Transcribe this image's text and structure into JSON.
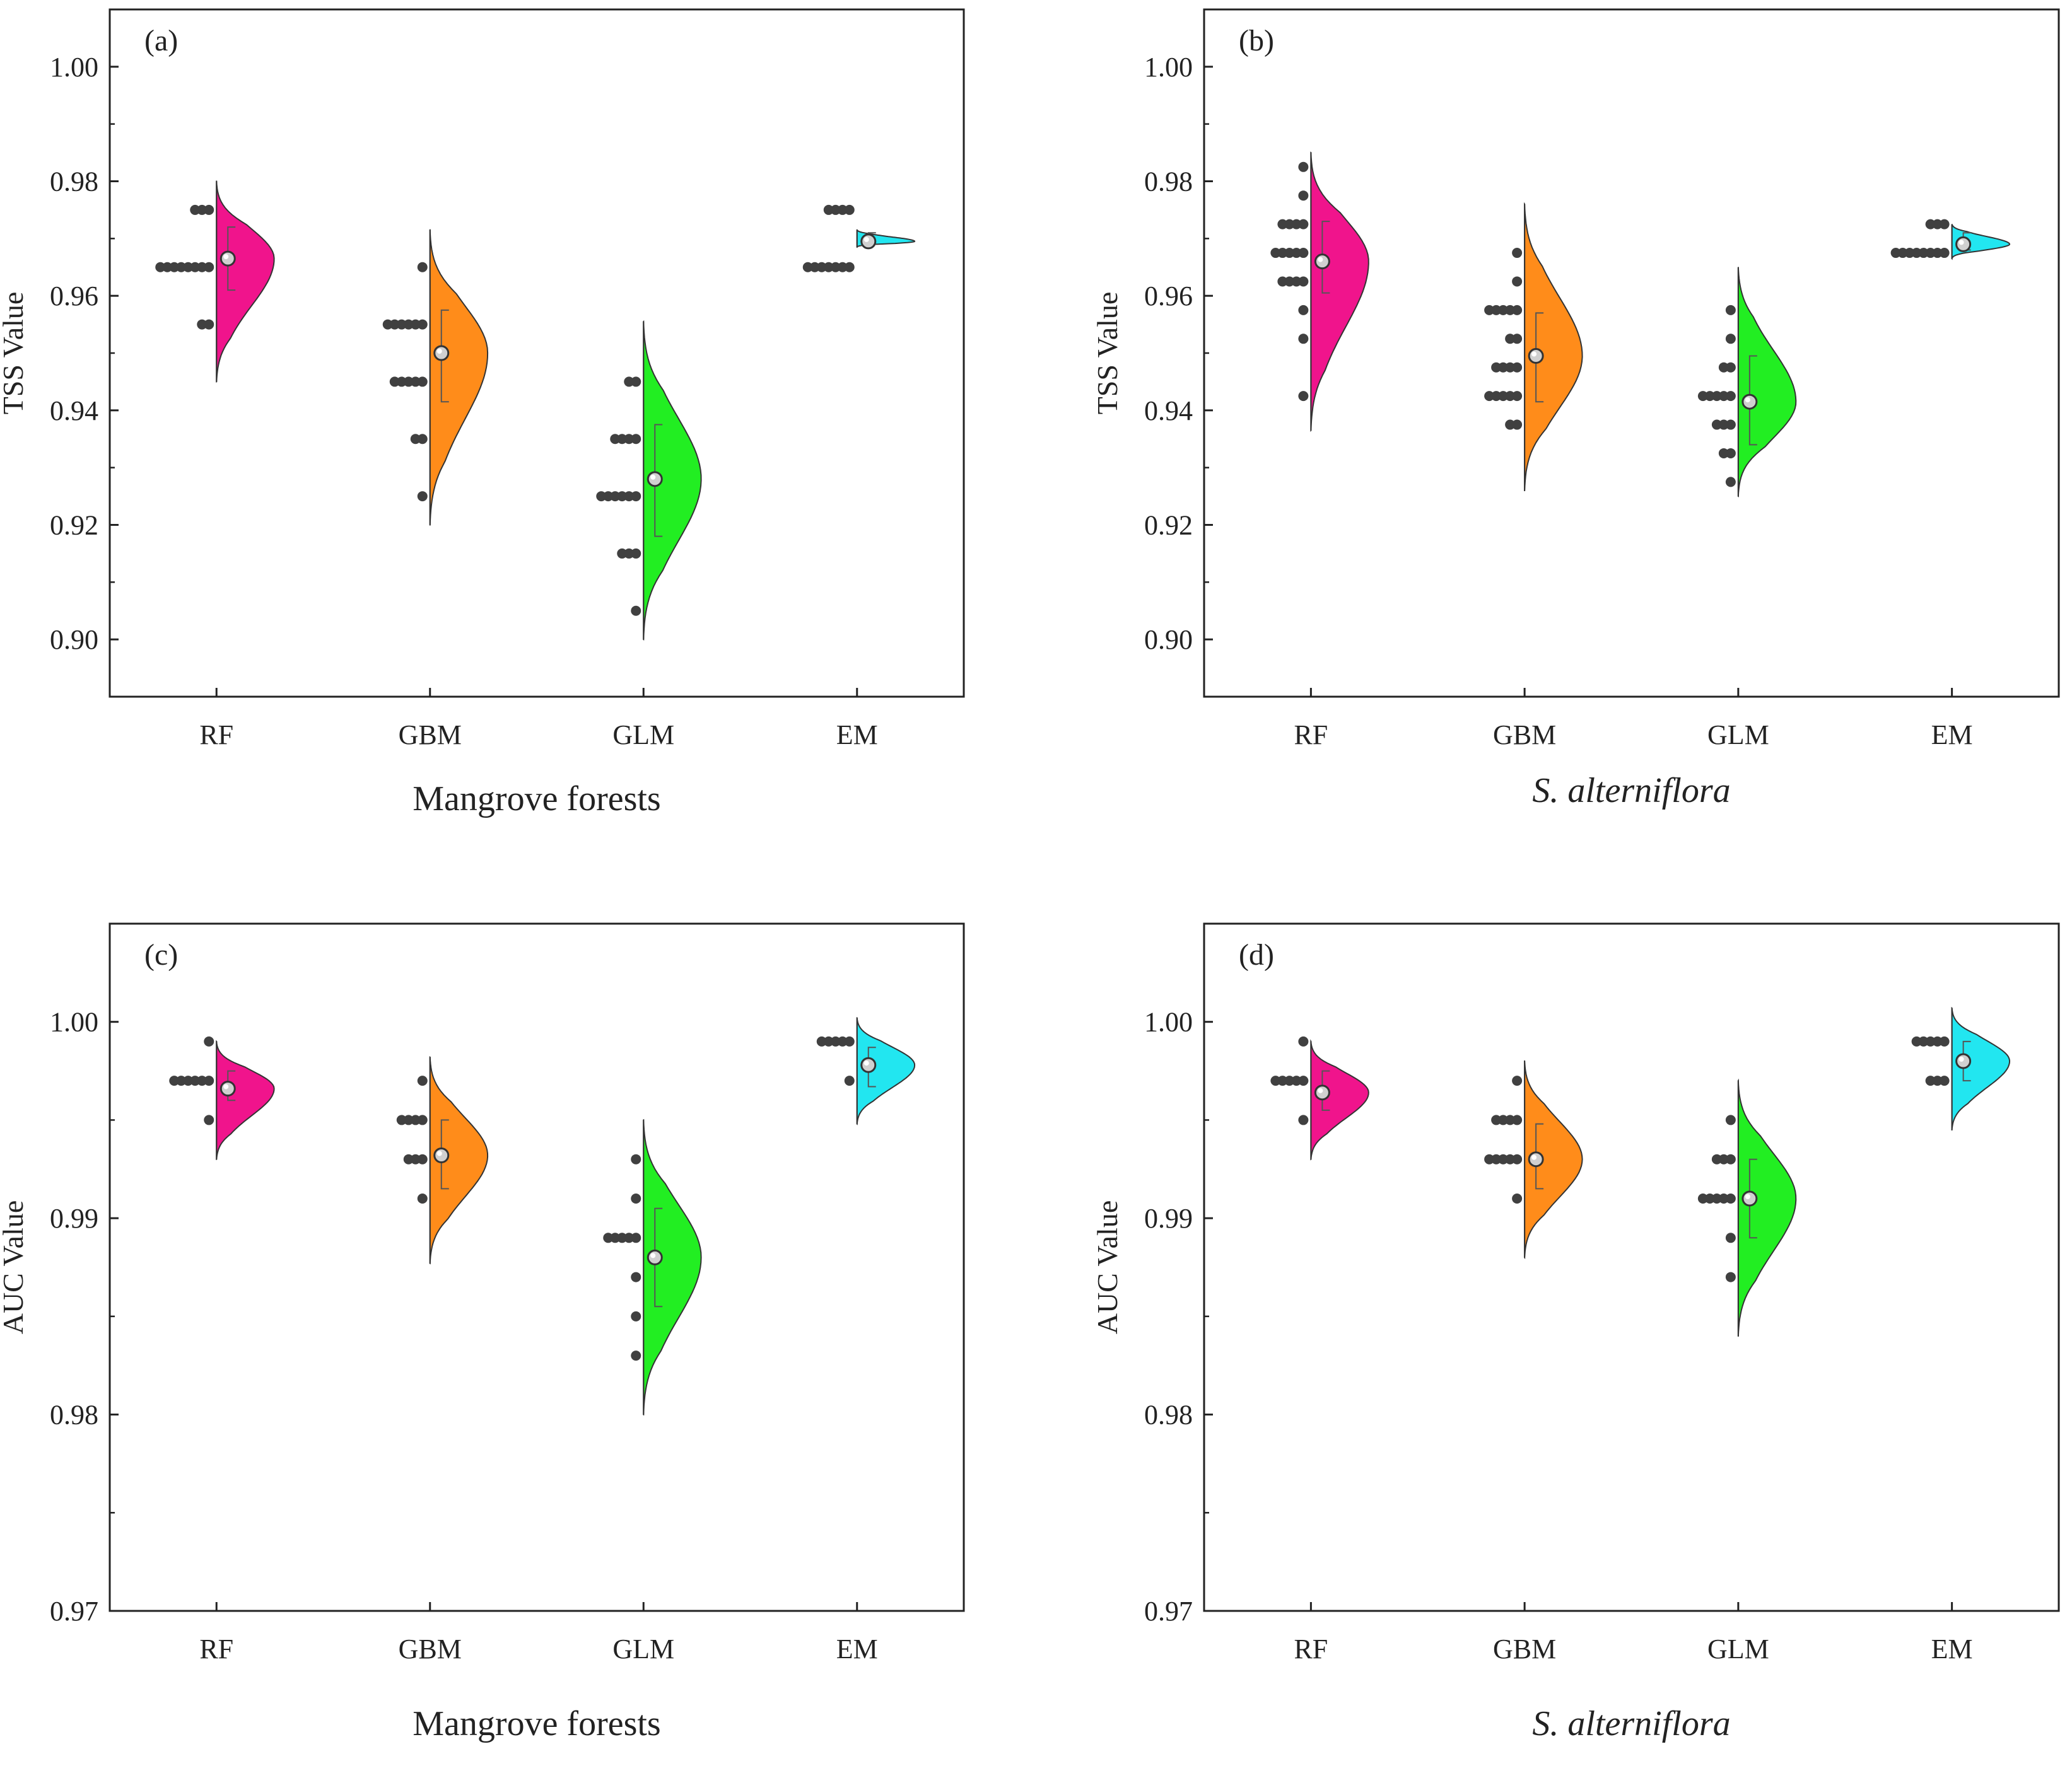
{
  "figure": {
    "colors": {
      "RF": "#f0148c",
      "GBM": "#ff8c1a",
      "GLM": "#22ee22",
      "EM": "#22e6f0",
      "dots": "#404040",
      "axis": "#222222"
    }
  },
  "chart_data": [
    {
      "id": "a",
      "type": "half-violin",
      "panel_label": "(a)",
      "ylabel": "TSS Value",
      "caption": "Mangrove forests",
      "caption_italic": false,
      "categories": [
        "RF",
        "GBM",
        "GLM",
        "EM"
      ],
      "ylim": [
        0.89,
        1.01
      ],
      "yticks": [
        0.9,
        0.92,
        0.94,
        0.96,
        0.98,
        1.0
      ],
      "ytick_labels": [
        "0.90",
        "0.92",
        "0.94",
        "0.96",
        "0.98",
        "1.00"
      ],
      "series": [
        {
          "name": "RF",
          "min": 0.945,
          "max": 0.98,
          "mean": 0.9665,
          "q1": 0.961,
          "q3": 0.972,
          "dots": [
            {
              "v": 0.975,
              "n": 3
            },
            {
              "v": 0.965,
              "n": 8
            },
            {
              "v": 0.955,
              "n": 2
            }
          ]
        },
        {
          "name": "GBM",
          "min": 0.92,
          "max": 0.9715,
          "mean": 0.95,
          "q1": 0.9415,
          "q3": 0.9575,
          "dots": [
            {
              "v": 0.965,
              "n": 1
            },
            {
              "v": 0.955,
              "n": 6
            },
            {
              "v": 0.945,
              "n": 5
            },
            {
              "v": 0.935,
              "n": 2
            },
            {
              "v": 0.925,
              "n": 1
            }
          ]
        },
        {
          "name": "GLM",
          "min": 0.9,
          "max": 0.9555,
          "mean": 0.928,
          "q1": 0.918,
          "q3": 0.9375,
          "dots": [
            {
              "v": 0.945,
              "n": 2
            },
            {
              "v": 0.935,
              "n": 4
            },
            {
              "v": 0.925,
              "n": 6
            },
            {
              "v": 0.915,
              "n": 3
            },
            {
              "v": 0.905,
              "n": 1
            }
          ]
        },
        {
          "name": "EM",
          "min": 0.9685,
          "max": 0.9715,
          "mean": 0.9695,
          "q1": 0.969,
          "q3": 0.971,
          "dots": [
            {
              "v": 0.975,
              "n": 4
            },
            {
              "v": 0.965,
              "n": 7
            }
          ]
        }
      ]
    },
    {
      "id": "b",
      "type": "half-violin",
      "panel_label": "(b)",
      "ylabel": "TSS Value",
      "caption": "S. alterniflora",
      "caption_italic": true,
      "categories": [
        "RF",
        "GBM",
        "GLM",
        "EM"
      ],
      "ylim": [
        0.89,
        1.01
      ],
      "yticks": [
        0.9,
        0.92,
        0.94,
        0.96,
        0.98,
        1.0
      ],
      "ytick_labels": [
        "0.90",
        "0.92",
        "0.94",
        "0.96",
        "0.98",
        "1.00"
      ],
      "series": [
        {
          "name": "RF",
          "min": 0.9365,
          "max": 0.985,
          "mean": 0.966,
          "q1": 0.9605,
          "q3": 0.973,
          "dots": [
            {
              "v": 0.9825,
              "n": 1
            },
            {
              "v": 0.9775,
              "n": 1
            },
            {
              "v": 0.9725,
              "n": 4
            },
            {
              "v": 0.9675,
              "n": 5
            },
            {
              "v": 0.9625,
              "n": 4
            },
            {
              "v": 0.9575,
              "n": 1
            },
            {
              "v": 0.9525,
              "n": 1
            },
            {
              "v": 0.9425,
              "n": 1
            }
          ]
        },
        {
          "name": "GBM",
          "min": 0.926,
          "max": 0.976,
          "mean": 0.9495,
          "q1": 0.9415,
          "q3": 0.957,
          "dots": [
            {
              "v": 0.9675,
              "n": 1
            },
            {
              "v": 0.9625,
              "n": 1
            },
            {
              "v": 0.9575,
              "n": 5
            },
            {
              "v": 0.9525,
              "n": 2
            },
            {
              "v": 0.9475,
              "n": 4
            },
            {
              "v": 0.9425,
              "n": 5
            },
            {
              "v": 0.9375,
              "n": 2
            }
          ]
        },
        {
          "name": "GLM",
          "min": 0.925,
          "max": 0.965,
          "mean": 0.9415,
          "q1": 0.934,
          "q3": 0.9495,
          "dots": [
            {
              "v": 0.9575,
              "n": 1
            },
            {
              "v": 0.9525,
              "n": 1
            },
            {
              "v": 0.9475,
              "n": 2
            },
            {
              "v": 0.9425,
              "n": 5
            },
            {
              "v": 0.9375,
              "n": 3
            },
            {
              "v": 0.9325,
              "n": 2
            },
            {
              "v": 0.9275,
              "n": 1
            }
          ]
        },
        {
          "name": "EM",
          "min": 0.9665,
          "max": 0.9725,
          "mean": 0.969,
          "q1": 0.968,
          "q3": 0.971,
          "dots": [
            {
              "v": 0.9725,
              "n": 3
            },
            {
              "v": 0.9675,
              "n": 8
            }
          ]
        }
      ]
    },
    {
      "id": "c",
      "type": "half-violin",
      "panel_label": "(c)",
      "ylabel": "AUC Value",
      "caption": "Mangrove forests",
      "caption_italic": false,
      "categories": [
        "RF",
        "GBM",
        "GLM",
        "EM"
      ],
      "ylim": [
        0.97,
        1.005
      ],
      "yticks": [
        0.97,
        0.98,
        0.99,
        1.0
      ],
      "ytick_labels": [
        "0.97",
        "0.98",
        "0.99",
        "1.00"
      ],
      "series": [
        {
          "name": "RF",
          "min": 0.993,
          "max": 0.999,
          "mean": 0.9966,
          "q1": 0.996,
          "q3": 0.9975,
          "dots": [
            {
              "v": 0.999,
              "n": 1
            },
            {
              "v": 0.997,
              "n": 6
            },
            {
              "v": 0.995,
              "n": 1
            }
          ]
        },
        {
          "name": "GBM",
          "min": 0.9877,
          "max": 0.9982,
          "mean": 0.9932,
          "q1": 0.9915,
          "q3": 0.995,
          "dots": [
            {
              "v": 0.997,
              "n": 1
            },
            {
              "v": 0.995,
              "n": 4
            },
            {
              "v": 0.993,
              "n": 3
            },
            {
              "v": 0.991,
              "n": 1
            }
          ]
        },
        {
          "name": "GLM",
          "min": 0.98,
          "max": 0.995,
          "mean": 0.988,
          "q1": 0.9855,
          "q3": 0.9905,
          "dots": [
            {
              "v": 0.993,
              "n": 1
            },
            {
              "v": 0.991,
              "n": 1
            },
            {
              "v": 0.989,
              "n": 5
            },
            {
              "v": 0.987,
              "n": 1
            },
            {
              "v": 0.985,
              "n": 1
            },
            {
              "v": 0.983,
              "n": 1
            }
          ]
        },
        {
          "name": "EM",
          "min": 0.9948,
          "max": 1.0002,
          "mean": 0.9978,
          "q1": 0.9967,
          "q3": 0.9987,
          "dots": [
            {
              "v": 0.999,
              "n": 5
            },
            {
              "v": 0.997,
              "n": 1
            }
          ]
        }
      ]
    },
    {
      "id": "d",
      "type": "half-violin",
      "panel_label": "(d)",
      "ylabel": "AUC Value",
      "caption": "S. alterniflora",
      "caption_italic": true,
      "categories": [
        "RF",
        "GBM",
        "GLM",
        "EM"
      ],
      "ylim": [
        0.97,
        1.005
      ],
      "yticks": [
        0.97,
        0.98,
        0.99,
        1.0
      ],
      "ytick_labels": [
        "0.97",
        "0.98",
        "0.99",
        "1.00"
      ],
      "series": [
        {
          "name": "RF",
          "min": 0.993,
          "max": 0.999,
          "mean": 0.9964,
          "q1": 0.9955,
          "q3": 0.9975,
          "dots": [
            {
              "v": 0.999,
              "n": 1
            },
            {
              "v": 0.997,
              "n": 5
            },
            {
              "v": 0.995,
              "n": 1
            }
          ]
        },
        {
          "name": "GBM",
          "min": 0.988,
          "max": 0.998,
          "mean": 0.993,
          "q1": 0.9915,
          "q3": 0.9948,
          "dots": [
            {
              "v": 0.997,
              "n": 1
            },
            {
              "v": 0.995,
              "n": 4
            },
            {
              "v": 0.993,
              "n": 5
            },
            {
              "v": 0.991,
              "n": 1
            }
          ]
        },
        {
          "name": "GLM",
          "min": 0.984,
          "max": 0.997,
          "mean": 0.991,
          "q1": 0.989,
          "q3": 0.993,
          "dots": [
            {
              "v": 0.995,
              "n": 1
            },
            {
              "v": 0.993,
              "n": 3
            },
            {
              "v": 0.991,
              "n": 5
            },
            {
              "v": 0.989,
              "n": 1
            },
            {
              "v": 0.987,
              "n": 1
            }
          ]
        },
        {
          "name": "EM",
          "min": 0.9945,
          "max": 1.0007,
          "mean": 0.998,
          "q1": 0.997,
          "q3": 0.999,
          "dots": [
            {
              "v": 0.999,
              "n": 5
            },
            {
              "v": 0.997,
              "n": 3
            }
          ]
        }
      ]
    }
  ]
}
